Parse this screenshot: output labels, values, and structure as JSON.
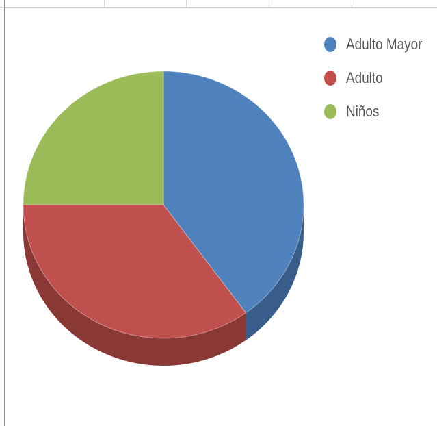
{
  "chart_data": {
    "type": "pie",
    "style": "3d",
    "categories": [
      "Adulto Mayor",
      "Adulto",
      "Niños"
    ],
    "values": [
      40,
      35,
      25
    ],
    "colors": [
      "#4f81bd",
      "#c0504d",
      "#9bbb59"
    ],
    "side_colors": [
      "#385d8a",
      "#8a3836",
      "#71893f"
    ],
    "legend_position": "right",
    "start_angle_deg": -90,
    "title": "",
    "grid": false
  }
}
